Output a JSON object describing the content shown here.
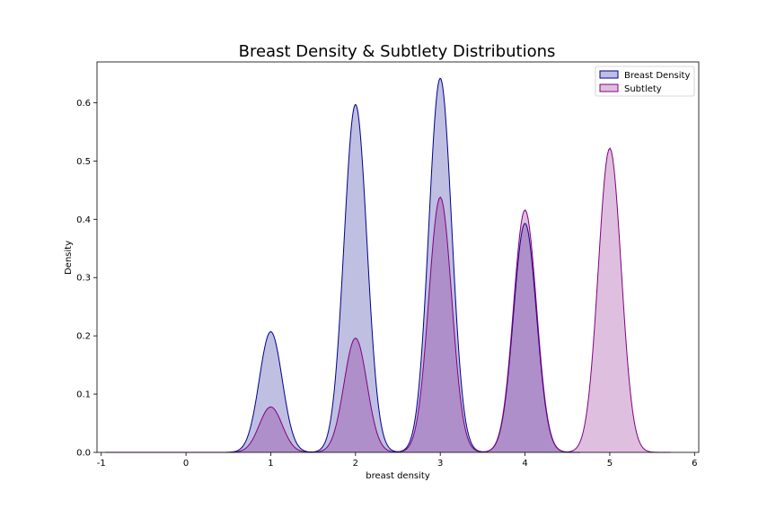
{
  "chart_data": {
    "type": "area",
    "title": "Breast Density & Subtlety Distributions",
    "xlabel": "breast density",
    "ylabel": "Density",
    "xlim": [
      -1.05,
      6.05
    ],
    "ylim": [
      0,
      0.67
    ],
    "xticks": [
      -1,
      0,
      1,
      2,
      3,
      4,
      5,
      6
    ],
    "yticks": [
      0.0,
      0.1,
      0.2,
      0.3,
      0.4,
      0.5,
      0.6
    ],
    "grid": false,
    "legend_position": "top-right",
    "series": [
      {
        "name": "Breast Density",
        "line_color": "#00008b",
        "fill_color": "#00008b",
        "fill_opacity": 0.25,
        "x_range": [
          0.3,
          4.65
        ],
        "peaks": [
          {
            "x": 1,
            "height": 0.207
          },
          {
            "x": 2,
            "height": 0.597
          },
          {
            "x": 3,
            "height": 0.642
          },
          {
            "x": 4,
            "height": 0.393
          }
        ],
        "bandwidth": 0.135
      },
      {
        "name": "Subtlety",
        "line_color": "#800080",
        "fill_color": "#800080",
        "fill_opacity": 0.25,
        "x_range": [
          -0.95,
          5.72
        ],
        "peaks": [
          {
            "x": 1,
            "height": 0.078
          },
          {
            "x": 2,
            "height": 0.196
          },
          {
            "x": 3,
            "height": 0.438
          },
          {
            "x": 4,
            "height": 0.416
          },
          {
            "x": 5,
            "height": 0.522
          }
        ],
        "bandwidth": 0.135
      }
    ]
  }
}
